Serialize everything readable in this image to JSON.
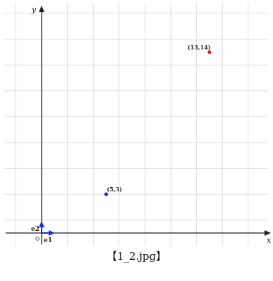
{
  "axes": {
    "x_label": "x",
    "y_label": "y",
    "grid": true,
    "colors": {
      "grid": "#d7d7d7",
      "axis": "#222222"
    }
  },
  "basis": {
    "e1": {
      "label": "e1",
      "color": "#1a2fd6"
    },
    "e2": {
      "label": "e2",
      "color": "#1a2fd6"
    }
  },
  "points": [
    {
      "label": "(5,3)",
      "x": 5,
      "y": 3,
      "color": "#1a2fd6"
    },
    {
      "label": "(13,14)",
      "x": 13,
      "y": 14,
      "color": "#d41a1a"
    }
  ],
  "caption": "【1_2.jpg】"
}
